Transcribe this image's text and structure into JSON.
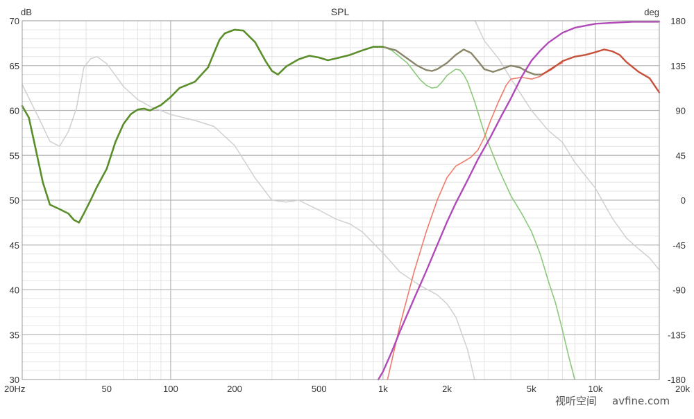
{
  "chart_data": {
    "type": "line",
    "title": "SPL",
    "x_scale": "log",
    "xlim": [
      20,
      20000
    ],
    "ylim": [
      30,
      70
    ],
    "y2lim": [
      -180,
      180
    ],
    "y_unit": "dB",
    "y2_unit": "deg",
    "grid": true,
    "x_ticks": [
      {
        "value": 20,
        "label": "20Hz"
      },
      {
        "value": 50,
        "label": "50"
      },
      {
        "value": 100,
        "label": "100"
      },
      {
        "value": 200,
        "label": "200"
      },
      {
        "value": 500,
        "label": "500"
      },
      {
        "value": 1000,
        "label": "1k"
      },
      {
        "value": 2000,
        "label": "2k"
      },
      {
        "value": 5000,
        "label": "5k"
      },
      {
        "value": 10000,
        "label": "10k"
      },
      {
        "value": 20000,
        "label": "20k"
      }
    ],
    "y_ticks": [
      {
        "value": 70,
        "label": "70"
      },
      {
        "value": 65,
        "label": "65"
      },
      {
        "value": 60,
        "label": "60"
      },
      {
        "value": 55,
        "label": "55"
      },
      {
        "value": 50,
        "label": "50"
      },
      {
        "value": 45,
        "label": "45"
      },
      {
        "value": 40,
        "label": "40"
      },
      {
        "value": 35,
        "label": "35"
      },
      {
        "value": 30,
        "label": "30"
      }
    ],
    "y2_ticks": [
      {
        "value": 180,
        "label": "180"
      },
      {
        "value": 135,
        "label": "135"
      },
      {
        "value": 90,
        "label": "90"
      },
      {
        "value": 45,
        "label": "45"
      },
      {
        "value": 0,
        "label": "0"
      },
      {
        "value": -45,
        "label": "-45"
      },
      {
        "value": -90,
        "label": "-90"
      },
      {
        "value": -135,
        "label": "-135"
      },
      {
        "value": -180,
        "label": "-180"
      }
    ],
    "series": [
      {
        "axis": "right",
        "color": "#d0d0d0",
        "width": 1.5,
        "x": [
          20,
          24,
          27,
          30,
          33,
          36,
          39,
          42,
          45,
          50,
          55,
          60,
          70,
          80,
          100,
          130,
          160,
          200,
          250,
          300,
          350,
          400,
          500,
          600,
          700,
          800,
          1000,
          1200,
          1500,
          1800,
          2000,
          2200,
          2500,
          2700,
          2710,
          3000,
          3500,
          4000,
          5000,
          6000,
          7000,
          8000,
          10000,
          12000,
          14000,
          16000,
          18000,
          20000
        ],
        "y": [
          116,
          82,
          59,
          54,
          69,
          92,
          133,
          142,
          144,
          137,
          125,
          114,
          101,
          94,
          86,
          80,
          74,
          55,
          22,
          0,
          -2,
          0,
          -10,
          -19,
          -24,
          -32,
          -53,
          -72,
          -86,
          -95,
          -104,
          -117,
          -150,
          -180,
          180,
          160,
          142,
          122,
          90,
          70,
          58,
          38,
          12,
          -18,
          -38,
          -49,
          -58,
          -70
        ]
      },
      {
        "axis": "left",
        "color": "#8ac97a",
        "width": 1.6,
        "x": [
          1000,
          1100,
          1300,
          1500,
          1600,
          1700,
          1800,
          1900,
          2000,
          2200,
          2300,
          2400,
          2500,
          2700,
          3000,
          3500,
          4000,
          4500,
          5000,
          5500,
          6000,
          6500,
          7000,
          7500,
          8000
        ],
        "y": [
          67.1,
          66.7,
          65.3,
          63.4,
          62.8,
          62.5,
          62.6,
          63.2,
          63.9,
          64.6,
          64.5,
          64.0,
          63.2,
          61.0,
          57.5,
          53.5,
          50.5,
          48.5,
          46.5,
          44.0,
          41.0,
          38.5,
          35.5,
          32.5,
          30.0
        ]
      },
      {
        "axis": "left",
        "color": "#f07a6a",
        "width": 1.6,
        "x": [
          1050,
          1200,
          1400,
          1600,
          1800,
          2000,
          2200,
          2400,
          2600,
          2800,
          3000,
          3200,
          3500,
          3800,
          4000,
          4500,
          5000,
          5500,
          6000,
          6500,
          7000
        ],
        "y": [
          30.0,
          36.0,
          42.0,
          46.5,
          50.0,
          52.5,
          53.8,
          54.3,
          54.8,
          55.6,
          57.0,
          58.8,
          61.0,
          62.8,
          63.5,
          63.7,
          63.5,
          63.8,
          64.5,
          65.0,
          65.3
        ]
      },
      {
        "axis": "left",
        "color": "#8a8468",
        "width": 2.4,
        "x": [
          1000,
          1150,
          1300,
          1450,
          1600,
          1700,
          1800,
          2000,
          2200,
          2400,
          2600,
          2800,
          3000,
          3300,
          3600,
          4000,
          4400,
          4800,
          5200,
          5600
        ],
        "y": [
          67.1,
          66.7,
          65.8,
          65.0,
          64.5,
          64.4,
          64.6,
          65.3,
          66.2,
          66.8,
          66.4,
          65.5,
          64.6,
          64.3,
          64.6,
          65.0,
          64.8,
          64.3,
          64.0,
          64.0
        ]
      },
      {
        "axis": "left",
        "color": "#c8503a",
        "width": 2.4,
        "x": [
          5600,
          6200,
          7000,
          8000,
          9000,
          10000,
          11000,
          12000,
          13000,
          14000,
          16000,
          18000,
          20000
        ],
        "y": [
          64.0,
          64.6,
          65.5,
          66.0,
          66.2,
          66.5,
          66.8,
          66.6,
          66.2,
          65.4,
          64.3,
          63.6,
          62.0
        ]
      },
      {
        "axis": "left",
        "color": "#5a8e2a",
        "width": 2.6,
        "x": [
          20,
          21.5,
          23,
          25,
          27,
          30,
          33,
          35,
          37,
          39,
          42,
          45,
          50,
          55,
          60,
          65,
          70,
          75,
          80,
          90,
          100,
          110,
          130,
          150,
          160,
          170,
          180,
          200,
          220,
          250,
          280,
          300,
          320,
          350,
          400,
          450,
          500,
          550,
          600,
          700,
          800,
          900,
          1000
        ],
        "y": [
          60.5,
          59.2,
          56.0,
          52.0,
          49.5,
          49.0,
          48.5,
          47.8,
          47.5,
          48.5,
          50.0,
          51.5,
          53.5,
          56.5,
          58.5,
          59.6,
          60.1,
          60.2,
          60.0,
          60.6,
          61.5,
          62.5,
          63.2,
          64.8,
          66.4,
          67.9,
          68.6,
          69.0,
          68.9,
          67.6,
          65.5,
          64.4,
          64.0,
          64.9,
          65.7,
          66.1,
          65.9,
          65.6,
          65.8,
          66.2,
          66.7,
          67.1,
          67.1
        ]
      },
      {
        "axis": "right",
        "color": "#b04ab8",
        "width": 2.4,
        "x": [
          950,
          1000,
          1100,
          1200,
          1400,
          1600,
          1800,
          2000,
          2200,
          2500,
          2800,
          3200,
          3600,
          4000,
          4500,
          5000,
          5500,
          6000,
          7000,
          8000,
          10000,
          12000,
          15000,
          20000
        ],
        "y": [
          -180,
          -172,
          -152,
          -132,
          -99,
          -71,
          -45,
          -22,
          -3,
          20,
          41,
          63,
          84,
          102,
          124,
          140,
          150,
          158,
          168,
          173,
          177,
          178,
          179,
          179
        ]
      }
    ]
  },
  "watermark": {
    "cn": "视听空间",
    "site": "avfine.com"
  }
}
